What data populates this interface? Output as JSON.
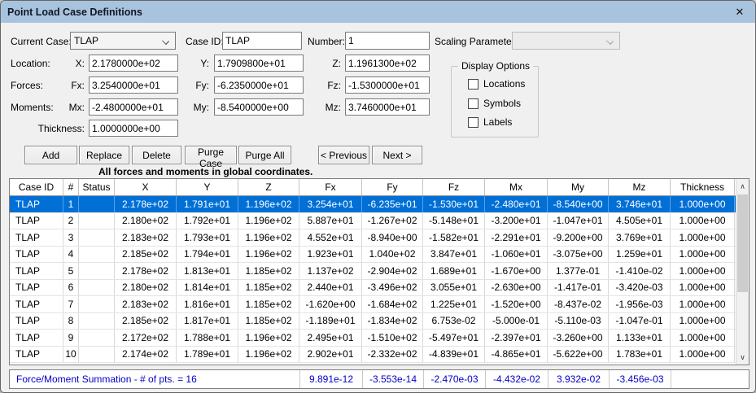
{
  "window": {
    "title": "Point Load Case Definitions"
  },
  "icons": {
    "close": "✕",
    "scroll_up": "∧",
    "scroll_down": "∨"
  },
  "form": {
    "current_case": {
      "label": "Current Case:",
      "value": "TLAP"
    },
    "case_id": {
      "label": "Case ID:",
      "value": "TLAP"
    },
    "number": {
      "label": "Number:",
      "value": "1"
    },
    "scaling_parameter": {
      "label": "Scaling Parameter:",
      "value": ""
    },
    "location": {
      "label": "Location:",
      "x_label": "X:",
      "x": "2.1780000e+02",
      "y_label": "Y:",
      "y": "1.7909800e+01",
      "z_label": "Z:",
      "z": "1.1961300e+02"
    },
    "forces": {
      "label": "Forces:",
      "fx_label": "Fx:",
      "fx": "3.2540000e+01",
      "fy_label": "Fy:",
      "fy": "-6.2350000e+01",
      "fz_label": "Fz:",
      "fz": "-1.5300000e+01"
    },
    "moments": {
      "label": "Moments:",
      "mx_label": "Mx:",
      "mx": "-2.4800000e+01",
      "my_label": "My:",
      "my": "-8.5400000e+00",
      "mz_label": "Mz:",
      "mz": "3.7460000e+01"
    },
    "thickness": {
      "label": "Thickness:",
      "value": "1.0000000e+00"
    }
  },
  "display_options": {
    "title": "Display Options",
    "items": [
      {
        "label": "Locations",
        "checked": false
      },
      {
        "label": "Symbols",
        "checked": false
      },
      {
        "label": "Labels",
        "checked": false
      }
    ]
  },
  "buttons": {
    "add": "Add",
    "replace": "Replace",
    "delete": "Delete",
    "purge_case": "Purge Case",
    "purge_all": "Purge All",
    "previous": "< Previous",
    "next": "Next >"
  },
  "note": "All forces and moments in global coordinates.",
  "table": {
    "columns": [
      "Case ID",
      "#",
      "Status",
      "X",
      "Y",
      "Z",
      "Fx",
      "Fy",
      "Fz",
      "Mx",
      "My",
      "Mz",
      "Thickness"
    ],
    "selected_row_index": 0,
    "rows": [
      [
        "TLAP",
        "1",
        "",
        "2.178e+02",
        "1.791e+01",
        "1.196e+02",
        "3.254e+01",
        "-6.235e+01",
        "-1.530e+01",
        "-2.480e+01",
        "-8.540e+00",
        "3.746e+01",
        "1.000e+00"
      ],
      [
        "TLAP",
        "2",
        "",
        "2.180e+02",
        "1.792e+01",
        "1.196e+02",
        "5.887e+01",
        "-1.267e+02",
        "-5.148e+01",
        "-3.200e+01",
        "-1.047e+01",
        "4.505e+01",
        "1.000e+00"
      ],
      [
        "TLAP",
        "3",
        "",
        "2.183e+02",
        "1.793e+01",
        "1.196e+02",
        "4.552e+01",
        "-8.940e+00",
        "-1.582e+01",
        "-2.291e+01",
        "-9.200e+00",
        "3.769e+01",
        "1.000e+00"
      ],
      [
        "TLAP",
        "4",
        "",
        "2.185e+02",
        "1.794e+01",
        "1.196e+02",
        "1.923e+01",
        "1.040e+02",
        "3.847e+01",
        "-1.060e+01",
        "-3.075e+00",
        "1.259e+01",
        "1.000e+00"
      ],
      [
        "TLAP",
        "5",
        "",
        "2.178e+02",
        "1.813e+01",
        "1.185e+02",
        "1.137e+02",
        "-2.904e+02",
        "1.689e+01",
        "-1.670e+00",
        "1.377e-01",
        "-1.410e-02",
        "1.000e+00"
      ],
      [
        "TLAP",
        "6",
        "",
        "2.180e+02",
        "1.814e+01",
        "1.185e+02",
        "2.440e+01",
        "-3.496e+02",
        "3.055e+01",
        "-2.630e+00",
        "-1.417e-01",
        "-3.420e-03",
        "1.000e+00"
      ],
      [
        "TLAP",
        "7",
        "",
        "2.183e+02",
        "1.816e+01",
        "1.185e+02",
        "-1.620e+00",
        "-1.684e+02",
        "1.225e+01",
        "-1.520e+00",
        "-8.437e-02",
        "-1.956e-03",
        "1.000e+00"
      ],
      [
        "TLAP",
        "8",
        "",
        "2.185e+02",
        "1.817e+01",
        "1.185e+02",
        "-1.189e+01",
        "-1.834e+02",
        "6.753e-02",
        "-5.000e-01",
        "-5.110e-03",
        "-1.047e-01",
        "1.000e+00"
      ],
      [
        "TLAP",
        "9",
        "",
        "2.172e+02",
        "1.788e+01",
        "1.196e+02",
        "2.495e+01",
        "-1.510e+02",
        "-5.497e+01",
        "-2.397e+01",
        "-3.260e+00",
        "1.133e+01",
        "1.000e+00"
      ],
      [
        "TLAP",
        "10",
        "",
        "2.174e+02",
        "1.789e+01",
        "1.196e+02",
        "2.902e+01",
        "-2.332e+02",
        "-4.839e+01",
        "-4.865e+01",
        "-5.622e+00",
        "1.783e+01",
        "1.000e+00"
      ]
    ]
  },
  "summation": {
    "label": "Force/Moment Summation - # of pts. = 16",
    "values": [
      "9.891e-12",
      "-3.553e-14",
      "-2.470e-03",
      "-4.432e-02",
      "3.932e-02",
      "-3.456e-03"
    ]
  }
}
